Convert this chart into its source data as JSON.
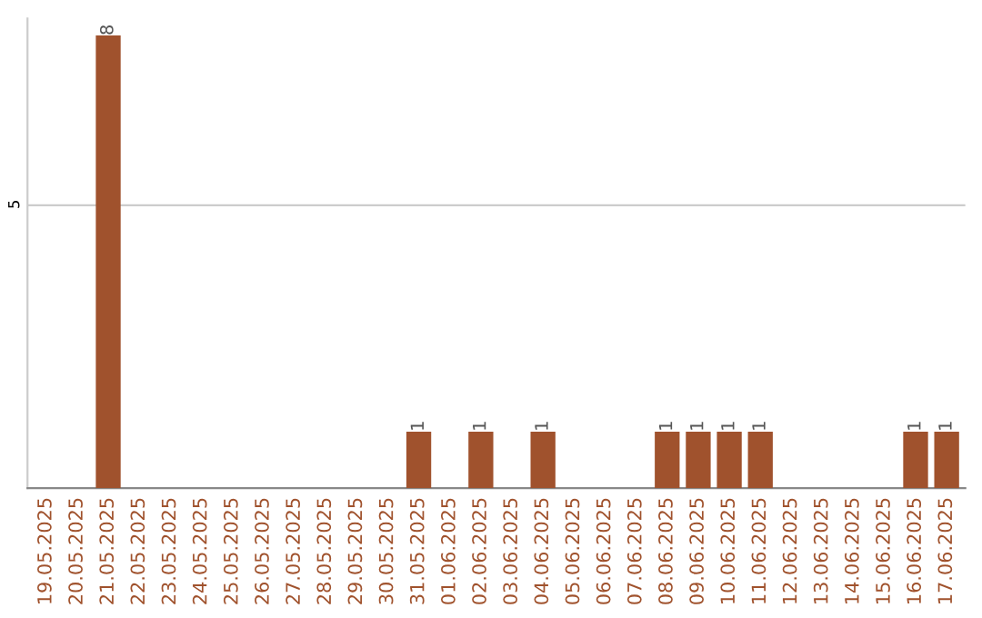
{
  "chart_data": {
    "type": "bar",
    "categories": [
      "19.05.2025",
      "20.05.2025",
      "21.05.2025",
      "22.05.2025",
      "23.05.2025",
      "24.05.2025",
      "25.05.2025",
      "26.05.2025",
      "27.05.2025",
      "28.05.2025",
      "29.05.2025",
      "30.05.2025",
      "31.05.2025",
      "01.06.2025",
      "02.06.2025",
      "03.06.2025",
      "04.06.2025",
      "05.06.2025",
      "06.06.2025",
      "07.06.2025",
      "08.06.2025",
      "09.06.2025",
      "10.06.2025",
      "11.06.2025",
      "12.06.2025",
      "13.06.2025",
      "14.06.2025",
      "15.06.2025",
      "16.06.2025",
      "17.06.2025"
    ],
    "values": [
      0,
      0,
      8,
      0,
      0,
      0,
      0,
      0,
      0,
      0,
      0,
      0,
      1,
      0,
      1,
      0,
      1,
      0,
      0,
      0,
      1,
      1,
      1,
      1,
      0,
      0,
      0,
      0,
      1,
      1
    ],
    "value_labels": [
      null,
      null,
      "8",
      null,
      null,
      null,
      null,
      null,
      null,
      null,
      null,
      null,
      "1",
      null,
      "1",
      null,
      "1",
      null,
      null,
      null,
      "1",
      "1",
      "1",
      "1",
      null,
      null,
      null,
      null,
      "1",
      "1"
    ],
    "color": "#a0522d",
    "ylim": [
      0,
      8.3
    ],
    "yticks": [
      5
    ],
    "grid": "y"
  }
}
